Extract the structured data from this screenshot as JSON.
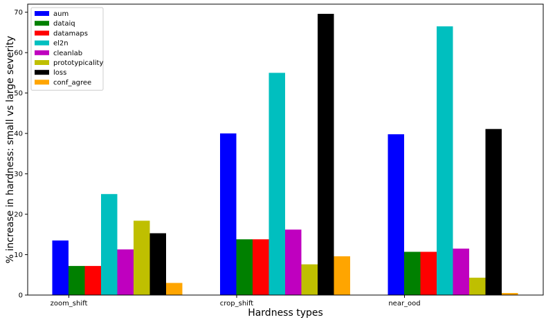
{
  "chart_data": {
    "type": "bar",
    "xlabel": "Hardness types",
    "ylabel": "% increase in hardness: small vs large severity",
    "categories": [
      "zoom_shift",
      "crop_shift",
      "near_ood"
    ],
    "ylim": [
      0,
      72
    ],
    "yticks": [
      0,
      10,
      20,
      30,
      40,
      50,
      60,
      70
    ],
    "grid": false,
    "legend_position": "top-left",
    "series": [
      {
        "name": "aum",
        "color": "#0000ff",
        "values": [
          13.5,
          40.0,
          39.8
        ]
      },
      {
        "name": "dataiq",
        "color": "#008000",
        "values": [
          7.2,
          13.8,
          10.7
        ]
      },
      {
        "name": "datamaps",
        "color": "#ff0000",
        "values": [
          7.2,
          13.8,
          10.7
        ]
      },
      {
        "name": "el2n",
        "color": "#00bfbf",
        "values": [
          25.0,
          55.0,
          66.5
        ]
      },
      {
        "name": "cleanlab",
        "color": "#bf00bf",
        "values": [
          11.3,
          16.2,
          11.5
        ]
      },
      {
        "name": "prototypicality",
        "color": "#bfbf00",
        "values": [
          18.4,
          7.6,
          4.3
        ]
      },
      {
        "name": "loss",
        "color": "#000000",
        "values": [
          15.3,
          69.6,
          41.1
        ]
      },
      {
        "name": "conf_agree",
        "color": "#ffa500",
        "values": [
          3.0,
          9.6,
          0.5
        ]
      }
    ]
  }
}
